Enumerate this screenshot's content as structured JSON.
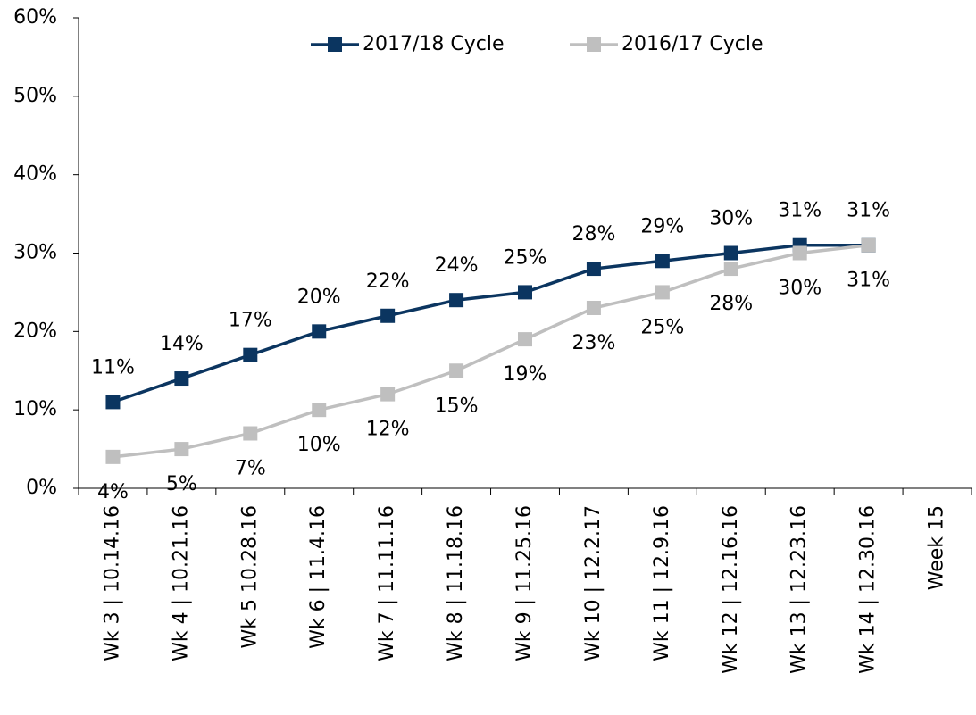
{
  "chart_data": {
    "type": "line",
    "categories": [
      "Wk 3 | 10.14.16",
      "Wk 4 | 10.21.16",
      "Wk 5 10.28.16",
      "Wk 6 | 11.4.16",
      "Wk 7 | 11.11.16",
      "Wk 8 | 11.18.16",
      "Wk 9 | 11.25.16",
      "Wk 10 | 12.2.17",
      "Wk 11 | 12.9.16",
      "Wk 12 | 12.16.16",
      "Wk 13 | 12.23.16",
      "Wk 14 | 12.30.16",
      "Week 15"
    ],
    "series": [
      {
        "name": "2017/18 Cycle",
        "color": "#0b3560",
        "values": [
          11,
          14,
          17,
          20,
          22,
          24,
          25,
          28,
          29,
          30,
          31,
          31,
          null
        ],
        "value_labels": [
          "11%",
          "14%",
          "17%",
          "20%",
          "22%",
          "24%",
          "25%",
          "28%",
          "29%",
          "30%",
          "31%",
          "31%",
          null
        ]
      },
      {
        "name": "2016/17 Cycle",
        "color": "#bfbfbf",
        "values": [
          4,
          5,
          7,
          10,
          12,
          15,
          19,
          23,
          25,
          28,
          30,
          31,
          null
        ],
        "value_labels": [
          "4%",
          "5%",
          "7%",
          "10%",
          "12%",
          "15%",
          "19%",
          "23%",
          "25%",
          "28%",
          "30%",
          "31%",
          null
        ]
      }
    ],
    "ylim": [
      0,
      60
    ],
    "yticks": [
      {
        "value": 0,
        "label": "0%"
      },
      {
        "value": 10,
        "label": "10%"
      },
      {
        "value": 20,
        "label": "20%"
      },
      {
        "value": 30,
        "label": "30%"
      },
      {
        "value": 40,
        "label": "40%"
      },
      {
        "value": 50,
        "label": "50%"
      },
      {
        "value": 60,
        "label": "60%"
      }
    ],
    "legend": "top"
  }
}
